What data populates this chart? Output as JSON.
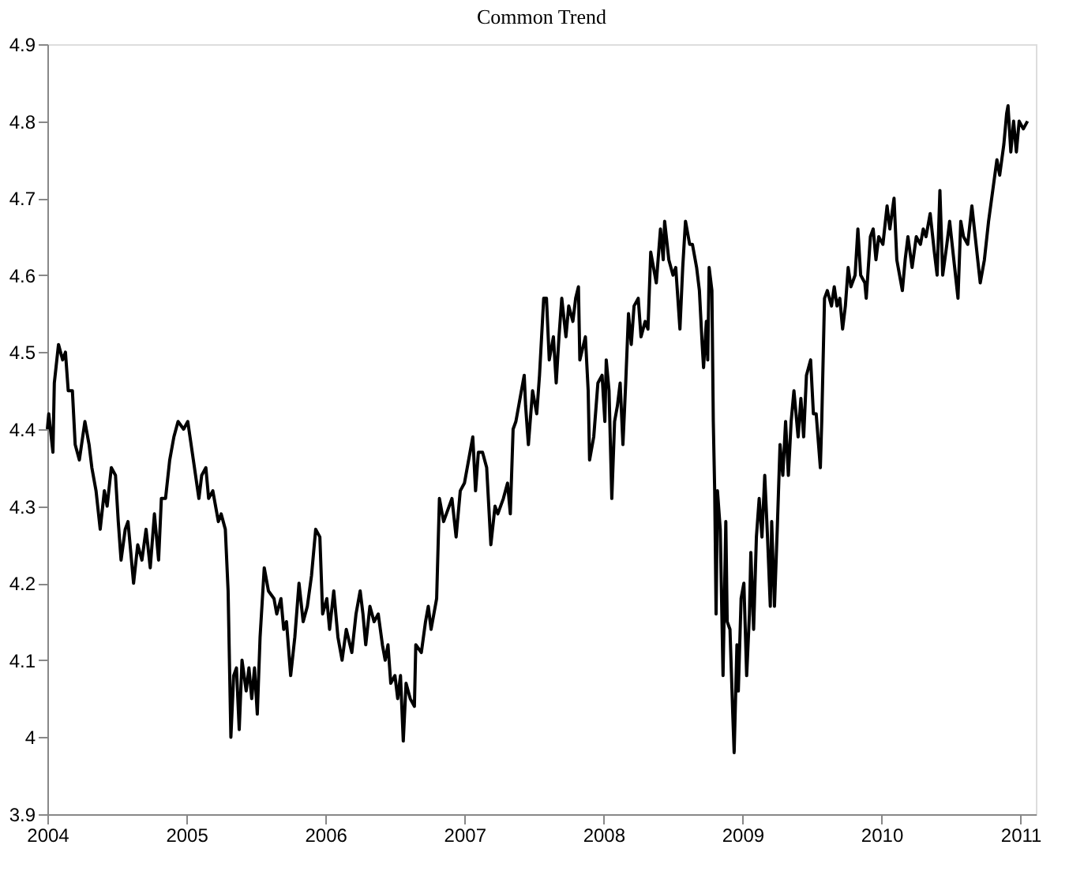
{
  "chart_data": {
    "type": "line",
    "title": "Common Trend",
    "x": [
      2004.0,
      2004.01,
      2004.04,
      2004.05,
      2004.08,
      2004.11,
      2004.13,
      2004.15,
      2004.18,
      2004.2,
      2004.23,
      2004.27,
      2004.3,
      2004.32,
      2004.35,
      2004.38,
      2004.41,
      2004.43,
      2004.46,
      2004.49,
      2004.51,
      2004.53,
      2004.56,
      2004.58,
      2004.62,
      2004.65,
      2004.68,
      2004.71,
      2004.74,
      2004.77,
      2004.8,
      2004.82,
      2004.85,
      2004.88,
      2004.91,
      2004.94,
      2004.98,
      2005.01,
      2005.05,
      2005.09,
      2005.11,
      2005.14,
      2005.16,
      2005.19,
      2005.23,
      2005.25,
      2005.28,
      2005.3,
      2005.32,
      2005.34,
      2005.36,
      2005.38,
      2005.4,
      2005.43,
      2005.45,
      2005.47,
      2005.49,
      2005.51,
      2005.53,
      2005.56,
      2005.59,
      2005.63,
      2005.65,
      2005.68,
      2005.7,
      2005.72,
      2005.75,
      2005.78,
      2005.81,
      2005.84,
      2005.87,
      2005.9,
      2005.93,
      2005.96,
      2005.98,
      2006.01,
      2006.03,
      2006.06,
      2006.09,
      2006.12,
      2006.15,
      2006.19,
      2006.22,
      2006.25,
      2006.27,
      2006.29,
      2006.32,
      2006.35,
      2006.38,
      2006.41,
      2006.43,
      2006.45,
      2006.47,
      2006.5,
      2006.52,
      2006.54,
      2006.56,
      2006.58,
      2006.61,
      2006.64,
      2006.65,
      2006.69,
      2006.72,
      2006.74,
      2006.76,
      2006.8,
      2006.82,
      2006.85,
      2006.89,
      2006.91,
      2006.94,
      2006.97,
      2007.0,
      2007.03,
      2007.06,
      2007.08,
      2007.1,
      2007.13,
      2007.16,
      2007.19,
      2007.22,
      2007.24,
      2007.28,
      2007.31,
      2007.33,
      2007.35,
      2007.37,
      2007.4,
      2007.43,
      2007.44,
      2007.46,
      2007.49,
      2007.52,
      2007.54,
      2007.57,
      2007.59,
      2007.61,
      2007.64,
      2007.66,
      2007.68,
      2007.7,
      2007.73,
      2007.75,
      2007.78,
      2007.8,
      2007.82,
      2007.83,
      2007.87,
      2007.89,
      2007.9,
      2007.93,
      2007.96,
      2007.99,
      2008.01,
      2008.02,
      2008.04,
      2008.06,
      2008.08,
      2008.1,
      2008.12,
      2008.14,
      2008.16,
      2008.18,
      2008.2,
      2008.22,
      2008.25,
      2008.27,
      2008.3,
      2008.32,
      2008.34,
      2008.36,
      2008.38,
      2008.41,
      2008.43,
      2008.44,
      2008.47,
      2008.5,
      2008.52,
      2008.55,
      2008.57,
      2008.59,
      2008.62,
      2008.64,
      2008.67,
      2008.69,
      2008.71,
      2008.72,
      2008.74,
      2008.75,
      2008.76,
      2008.78,
      2008.79,
      2008.8,
      2008.81,
      2008.82,
      2008.84,
      2008.86,
      2008.88,
      2008.89,
      2008.91,
      2008.93,
      2008.94,
      2008.96,
      2008.97,
      2008.99,
      2009.01,
      2009.03,
      2009.05,
      2009.06,
      2009.08,
      2009.1,
      2009.12,
      2009.14,
      2009.16,
      2009.18,
      2009.2,
      2009.21,
      2009.23,
      2009.25,
      2009.27,
      2009.29,
      2009.31,
      2009.33,
      2009.35,
      2009.37,
      2009.4,
      2009.42,
      2009.44,
      2009.46,
      2009.49,
      2009.51,
      2009.53,
      2009.56,
      2009.57,
      2009.59,
      2009.61,
      2009.64,
      2009.66,
      2009.68,
      2009.7,
      2009.72,
      2009.74,
      2009.76,
      2009.78,
      2009.81,
      2009.83,
      2009.85,
      2009.88,
      2009.89,
      2009.92,
      2009.94,
      2009.96,
      2009.98,
      2010.01,
      2010.04,
      2010.06,
      2010.09,
      2010.11,
      2010.15,
      2010.17,
      2010.19,
      2010.22,
      2010.25,
      2010.28,
      2010.3,
      2010.32,
      2010.35,
      2010.38,
      2010.4,
      2010.42,
      2010.44,
      2010.47,
      2010.49,
      2010.52,
      2010.55,
      2010.57,
      2010.59,
      2010.62,
      2010.65,
      2010.68,
      2010.71,
      2010.74,
      2010.77,
      2010.8,
      2010.83,
      2010.85,
      2010.88,
      2010.9,
      2010.91,
      2010.93,
      2010.95,
      2010.97,
      2010.99,
      2011.02,
      2011.05
    ],
    "values": [
      4.4,
      4.42,
      4.37,
      4.46,
      4.51,
      4.49,
      4.5,
      4.45,
      4.45,
      4.38,
      4.36,
      4.41,
      4.38,
      4.35,
      4.32,
      4.27,
      4.32,
      4.3,
      4.35,
      4.34,
      4.28,
      4.23,
      4.27,
      4.28,
      4.2,
      4.25,
      4.23,
      4.27,
      4.22,
      4.29,
      4.23,
      4.31,
      4.31,
      4.36,
      4.39,
      4.41,
      4.4,
      4.41,
      4.36,
      4.31,
      4.34,
      4.35,
      4.31,
      4.32,
      4.28,
      4.29,
      4.27,
      4.19,
      4.0,
      4.08,
      4.09,
      4.01,
      4.1,
      4.06,
      4.09,
      4.05,
      4.09,
      4.03,
      4.13,
      4.22,
      4.19,
      4.18,
      4.16,
      4.18,
      4.14,
      4.15,
      4.08,
      4.13,
      4.2,
      4.15,
      4.17,
      4.21,
      4.27,
      4.26,
      4.16,
      4.18,
      4.14,
      4.19,
      4.13,
      4.1,
      4.14,
      4.11,
      4.16,
      4.19,
      4.16,
      4.12,
      4.17,
      4.15,
      4.16,
      4.12,
      4.1,
      4.12,
      4.07,
      4.08,
      4.05,
      4.08,
      3.995,
      4.07,
      4.05,
      4.04,
      4.12,
      4.11,
      4.15,
      4.17,
      4.14,
      4.18,
      4.31,
      4.28,
      4.3,
      4.31,
      4.26,
      4.32,
      4.33,
      4.36,
      4.39,
      4.32,
      4.37,
      4.37,
      4.35,
      4.25,
      4.3,
      4.29,
      4.31,
      4.33,
      4.29,
      4.4,
      4.41,
      4.44,
      4.47,
      4.43,
      4.38,
      4.45,
      4.42,
      4.47,
      4.57,
      4.57,
      4.49,
      4.52,
      4.46,
      4.52,
      4.57,
      4.52,
      4.56,
      4.54,
      4.57,
      4.585,
      4.49,
      4.52,
      4.45,
      4.36,
      4.39,
      4.46,
      4.47,
      4.41,
      4.49,
      4.45,
      4.31,
      4.41,
      4.43,
      4.46,
      4.38,
      4.46,
      4.55,
      4.51,
      4.56,
      4.57,
      4.52,
      4.54,
      4.53,
      4.63,
      4.61,
      4.59,
      4.66,
      4.62,
      4.67,
      4.62,
      4.6,
      4.61,
      4.53,
      4.61,
      4.67,
      4.64,
      4.64,
      4.61,
      4.58,
      4.51,
      4.48,
      4.54,
      4.49,
      4.61,
      4.58,
      4.41,
      4.32,
      4.16,
      4.32,
      4.27,
      4.08,
      4.28,
      4.15,
      4.14,
      4.03,
      3.98,
      4.12,
      4.06,
      4.18,
      4.2,
      4.08,
      4.16,
      4.24,
      4.14,
      4.26,
      4.31,
      4.26,
      4.34,
      4.26,
      4.17,
      4.28,
      4.17,
      4.27,
      4.38,
      4.34,
      4.41,
      4.34,
      4.41,
      4.45,
      4.39,
      4.44,
      4.39,
      4.47,
      4.49,
      4.42,
      4.42,
      4.35,
      4.41,
      4.57,
      4.58,
      4.56,
      4.585,
      4.56,
      4.57,
      4.53,
      4.56,
      4.61,
      4.585,
      4.6,
      4.66,
      4.6,
      4.59,
      4.57,
      4.65,
      4.66,
      4.62,
      4.65,
      4.64,
      4.69,
      4.66,
      4.7,
      4.62,
      4.58,
      4.62,
      4.65,
      4.61,
      4.65,
      4.64,
      4.66,
      4.65,
      4.68,
      4.63,
      4.6,
      4.71,
      4.6,
      4.64,
      4.67,
      4.62,
      4.57,
      4.67,
      4.65,
      4.64,
      4.69,
      4.64,
      4.59,
      4.62,
      4.67,
      4.71,
      4.75,
      4.73,
      4.77,
      4.81,
      4.82,
      4.76,
      4.8,
      4.76,
      4.8,
      4.79,
      4.8
    ],
    "color": "#000000",
    "line_style": "solid",
    "marker": "none",
    "xlim": [
      2004,
      2011.11
    ],
    "xticks": [
      2004,
      2005,
      2006,
      2007,
      2008,
      2009,
      2010,
      2011
    ],
    "ylim": [
      3.9,
      4.9
    ],
    "yticks": [
      3.9,
      4,
      4.1,
      4.2,
      4.3,
      4.4,
      4.5,
      4.6,
      4.7,
      4.8,
      4.9
    ],
    "grid": false
  }
}
